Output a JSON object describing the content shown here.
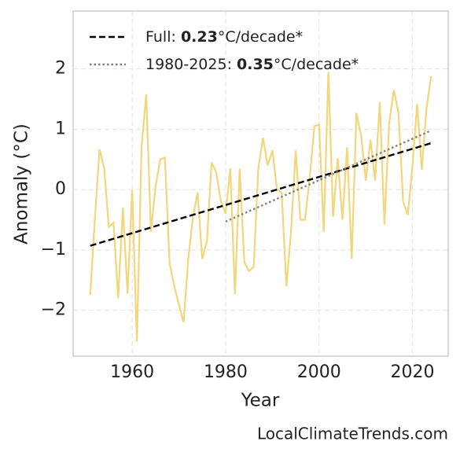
{
  "chart_data": {
    "type": "line",
    "xlabel": "Year",
    "ylabel": "Anomaly (°C)",
    "footer": "LocalClimateTrends.com",
    "xlim": [
      1947.35,
      2027.65
    ],
    "ylim": [
      -2.76,
      2.96
    ],
    "xticks": [
      1960,
      1980,
      2000,
      2020
    ],
    "yticks": [
      {
        "value": -2,
        "label": "−2"
      },
      {
        "value": -1,
        "label": "−1"
      },
      0,
      1,
      2
    ],
    "grid": true,
    "legend": "upper left",
    "series": [
      {
        "color": "#f2d67a",
        "style": "solid",
        "x": [
          1951,
          1952,
          1953,
          1954,
          1955,
          1956,
          1957,
          1958,
          1959,
          1960,
          1961,
          1962,
          1963,
          1964,
          1965,
          1966,
          1967,
          1968,
          1969,
          1970,
          1971,
          1972,
          1973,
          1974,
          1975,
          1976,
          1977,
          1978,
          1979,
          1980,
          1981,
          1982,
          1983,
          1984,
          1985,
          1986,
          1987,
          1988,
          1989,
          1990,
          1991,
          1992,
          1993,
          1994,
          1995,
          1996,
          1997,
          1998,
          1999,
          2000,
          2001,
          2002,
          2003,
          2004,
          2005,
          2006,
          2007,
          2008,
          2009,
          2010,
          2011,
          2012,
          2013,
          2014,
          2015,
          2016,
          2017,
          2018,
          2019,
          2020,
          2021,
          2022,
          2023,
          2024
        ],
        "values": [
          -1.75,
          -0.5,
          0.67,
          0.35,
          -0.62,
          -0.55,
          -1.8,
          -0.3,
          -1.72,
          0.0,
          -2.52,
          0.7,
          1.58,
          -0.7,
          0.05,
          0.5,
          0.53,
          -1.22,
          -1.6,
          -1.9,
          -2.2,
          -1.15,
          -0.45,
          -0.05,
          -1.15,
          -0.85,
          0.45,
          0.28,
          -0.2,
          -0.4,
          0.35,
          -1.73,
          0.35,
          -1.2,
          -1.35,
          -1.28,
          0.35,
          0.86,
          0.4,
          0.65,
          0.0,
          -0.05,
          -1.6,
          -0.7,
          0.65,
          -0.5,
          -0.5,
          0.2,
          1.05,
          1.08,
          -0.7,
          1.95,
          -0.45,
          0.52,
          -0.5,
          0.7,
          -1.15,
          1.27,
          0.9,
          0.15,
          0.83,
          0.15,
          1.45,
          -0.58,
          1.1,
          1.65,
          1.28,
          -0.2,
          -0.42,
          0.4,
          1.42,
          0.33,
          1.35,
          1.88
        ]
      },
      {
        "name_parts": [
          "Full: ",
          "0.23",
          "°C/decade*"
        ],
        "color": "#000000",
        "style": "dashed",
        "x": [
          1951,
          2024
        ],
        "values": [
          -0.93,
          0.77
        ]
      },
      {
        "name_parts": [
          "1980-2025: ",
          "0.35",
          "°C/decade*"
        ],
        "color": "#808080",
        "style": "dotted",
        "x": [
          1980,
          2024
        ],
        "values": [
          -0.53,
          0.98
        ]
      }
    ]
  }
}
